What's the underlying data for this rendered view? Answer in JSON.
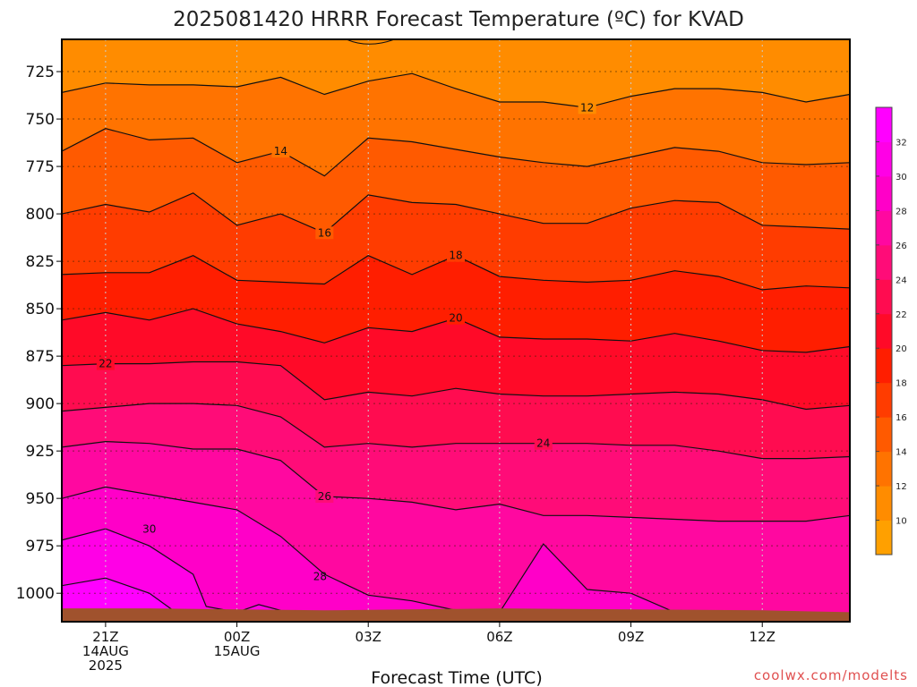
{
  "chart_data": {
    "type": "heatmap",
    "title": "2025081420 HRRR Forecast Temperature (ºC) for KVAD",
    "xlabel": "Forecast Time (UTC)",
    "ylabel": "",
    "credit": "coolwx.com/modelts",
    "y_axis": {
      "quantity": "pressure (hPa)",
      "inverted": true,
      "range": [
        1015,
        708
      ],
      "ticks": [
        725,
        750,
        775,
        800,
        825,
        850,
        875,
        900,
        925,
        950,
        975,
        1000
      ],
      "tick_labels": [
        "725",
        "750",
        "775",
        "800",
        "825",
        "850",
        "875",
        "900",
        "925",
        "950",
        "975",
        "1000"
      ]
    },
    "x_axis": {
      "quantity": "forecast hour from 2025-08-14 20Z",
      "range": [
        0,
        18
      ],
      "ticks": [
        1,
        4,
        7,
        10,
        13,
        16
      ],
      "tick_labels": [
        [
          "21Z",
          "14AUG",
          "2025"
        ],
        [
          "00Z",
          "15AUG"
        ],
        [
          "03Z"
        ],
        [
          "06Z"
        ],
        [
          "09Z"
        ],
        [
          "12Z"
        ]
      ]
    },
    "grid": true,
    "colorbar": {
      "placement": "right",
      "levels": [
        8,
        10,
        12,
        14,
        16,
        18,
        20,
        22,
        24,
        26,
        28,
        30,
        32,
        34
      ],
      "tick_labels": [
        "10",
        "12",
        "14",
        "16",
        "18",
        "20",
        "22",
        "24",
        "26",
        "28",
        "30",
        "32"
      ],
      "colors": [
        "#ffa000",
        "#ff8c00",
        "#ff7300",
        "#ff5a00",
        "#ff3c00",
        "#ff1e00",
        "#ff0a28",
        "#ff0c50",
        "#ff0c78",
        "#ff08a0",
        "#ff00c8",
        "#ff00e6",
        "#ff00ff"
      ]
    },
    "forecast_hours": [
      0,
      1,
      2,
      3,
      4,
      5,
      6,
      7,
      8,
      9,
      10,
      11,
      12,
      13,
      14,
      15,
      16,
      17,
      18
    ],
    "contours": [
      {
        "level": 12,
        "label": "12",
        "label_at": 12,
        "pressure": [
          736,
          731,
          732,
          732,
          733,
          728,
          737,
          730,
          726,
          734,
          741,
          741,
          744,
          738,
          734,
          734,
          736,
          741,
          737
        ]
      },
      {
        "level": 14,
        "label": "14",
        "label_at": 5,
        "pressure": [
          767,
          755,
          761,
          760,
          773,
          767,
          780,
          760,
          762,
          766,
          770,
          773,
          775,
          770,
          765,
          767,
          773,
          774,
          773
        ]
      },
      {
        "level": 16,
        "label": "16",
        "label_at": 6,
        "pressure": [
          800,
          795,
          799,
          789,
          806,
          800,
          810,
          790,
          794,
          795,
          800,
          805,
          805,
          797,
          793,
          794,
          806,
          807,
          808
        ]
      },
      {
        "level": 18,
        "label": "18",
        "label_at": 9,
        "pressure": [
          832,
          831,
          831,
          822,
          835,
          836,
          837,
          822,
          832,
          822,
          833,
          835,
          836,
          835,
          830,
          833,
          840,
          838,
          839
        ]
      },
      {
        "level": 20,
        "label": "20",
        "label_at": 9,
        "pressure": [
          856,
          852,
          856,
          850,
          858,
          862,
          868,
          860,
          862,
          855,
          865,
          866,
          866,
          867,
          863,
          867,
          872,
          873,
          870
        ]
      },
      {
        "level": 22,
        "label": "22",
        "label_at": 1,
        "pressure": [
          880,
          879,
          879,
          878,
          878,
          880,
          898,
          894,
          896,
          892,
          895,
          896,
          896,
          895,
          894,
          895,
          898,
          903,
          901
        ]
      },
      {
        "level": 24,
        "label": "24",
        "label_at": 11,
        "pressure": [
          904,
          902,
          900,
          900,
          901,
          907,
          923,
          921,
          923,
          921,
          921,
          921,
          921,
          922,
          922,
          925,
          929,
          929,
          928
        ]
      },
      {
        "level": 26,
        "label": "26",
        "label_at": 6,
        "pressure": [
          923,
          920,
          921,
          924,
          924,
          930,
          949,
          950,
          952,
          956,
          953,
          959,
          959,
          960,
          961,
          962,
          962,
          962,
          959
        ]
      }
    ],
    "warm_regions": [
      {
        "level": 28,
        "label": "28",
        "points": [
          [
            0,
            950
          ],
          [
            1,
            944
          ],
          [
            2,
            948
          ],
          [
            3,
            952
          ],
          [
            4,
            956
          ],
          [
            5,
            970
          ],
          [
            6,
            990
          ],
          [
            7,
            1001
          ],
          [
            8,
            1004
          ],
          [
            9,
            1009
          ],
          [
            10,
            1010
          ],
          [
            11,
            974
          ],
          [
            12,
            998
          ],
          [
            13,
            1000
          ],
          [
            14,
            1010
          ],
          [
            15,
            1011
          ]
        ]
      },
      {
        "level": 30,
        "label": "30",
        "points": [
          [
            0,
            972
          ],
          [
            1,
            966
          ],
          [
            2,
            975
          ],
          [
            3,
            990
          ],
          [
            3.3,
            1007
          ],
          [
            4,
            1010
          ],
          [
            4.5,
            1006
          ],
          [
            5,
            1009
          ]
        ]
      },
      {
        "level": 32,
        "label": "",
        "points": [
          [
            0,
            996
          ],
          [
            1,
            992
          ],
          [
            2,
            1000
          ],
          [
            2.6,
            1010
          ]
        ]
      }
    ],
    "surface_terrain": true
  }
}
